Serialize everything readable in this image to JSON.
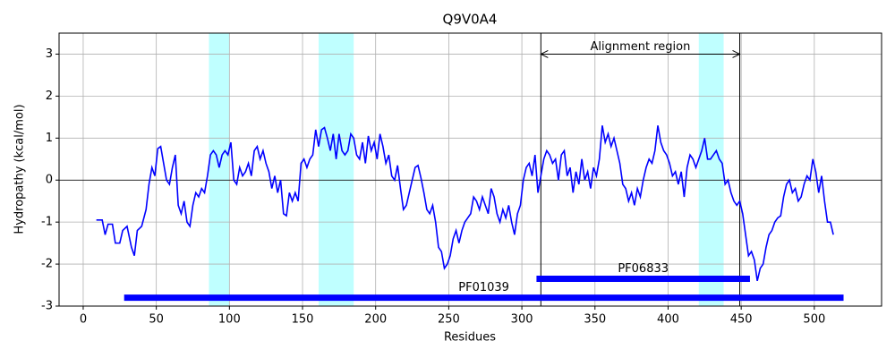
{
  "chart_data": {
    "type": "line",
    "title": "Q9V0A4",
    "x_label": "Residues",
    "y_label": "Hydropathy (kcal/mol)",
    "color": "#0000ff",
    "grid": true,
    "xlim": [
      -16.5,
      546
    ],
    "ylim": [
      -3,
      3.5
    ],
    "xticks": [
      0,
      50,
      100,
      150,
      200,
      250,
      300,
      350,
      400,
      450,
      500
    ],
    "yticks": [
      -3,
      -2,
      -1,
      0,
      1,
      2,
      3
    ],
    "x": [
      9,
      13,
      15,
      17,
      20,
      22,
      25,
      27,
      30,
      33,
      35,
      37,
      40,
      43,
      45,
      47,
      49,
      51,
      53,
      55,
      57,
      59,
      61,
      63,
      65,
      67,
      69,
      71,
      73,
      75,
      77,
      79,
      81,
      83,
      85,
      87,
      89,
      91,
      93,
      95,
      97,
      99,
      101,
      103,
      105,
      107,
      109,
      111,
      113,
      115,
      117,
      119,
      121,
      123,
      125,
      127,
      129,
      131,
      133,
      135,
      137,
      139,
      141,
      143,
      145,
      147,
      149,
      151,
      153,
      155,
      157,
      159,
      161,
      163,
      165,
      167,
      169,
      171,
      173,
      175,
      177,
      179,
      181,
      183,
      185,
      187,
      189,
      191,
      193,
      195,
      197,
      199,
      201,
      203,
      205,
      207,
      209,
      211,
      213,
      215,
      217,
      219,
      221,
      223,
      225,
      227,
      229,
      231,
      233,
      235,
      237,
      239,
      241,
      243,
      245,
      247,
      249,
      251,
      253,
      255,
      257,
      259,
      261,
      263,
      265,
      267,
      269,
      271,
      273,
      275,
      277,
      279,
      281,
      283,
      285,
      287,
      289,
      291,
      293,
      295,
      297,
      299,
      301,
      303,
      305,
      307,
      309,
      311,
      313,
      315,
      317,
      319,
      321,
      323,
      325,
      327,
      329,
      331,
      333,
      335,
      337,
      339,
      341,
      343,
      345,
      347,
      349,
      351,
      353,
      355,
      357,
      359,
      361,
      363,
      365,
      367,
      369,
      371,
      373,
      375,
      377,
      379,
      381,
      383,
      385,
      387,
      389,
      391,
      393,
      395,
      397,
      399,
      401,
      403,
      405,
      407,
      409,
      411,
      413,
      415,
      417,
      419,
      421,
      423,
      425,
      427,
      429,
      431,
      433,
      435,
      437,
      439,
      441,
      443,
      445,
      447,
      449,
      451,
      453,
      455,
      457,
      459,
      461,
      463,
      465,
      467,
      469,
      471,
      473,
      475,
      477,
      479,
      481,
      483,
      485,
      487,
      489,
      491,
      493,
      495,
      497,
      499,
      501,
      503,
      505,
      507,
      509,
      511,
      513
    ],
    "values": [
      -0.95,
      -0.95,
      -1.3,
      -1.05,
      -1.05,
      -1.5,
      -1.5,
      -1.2,
      -1.1,
      -1.6,
      -1.8,
      -1.2,
      -1.1,
      -0.7,
      -0.1,
      0.3,
      0.1,
      0.75,
      0.8,
      0.4,
      0.0,
      -0.1,
      0.3,
      0.6,
      -0.6,
      -0.8,
      -0.5,
      -1.0,
      -1.1,
      -0.6,
      -0.3,
      -0.4,
      -0.2,
      -0.3,
      0.1,
      0.6,
      0.7,
      0.6,
      0.3,
      0.6,
      0.7,
      0.6,
      0.9,
      0.0,
      -0.1,
      0.3,
      0.1,
      0.2,
      0.4,
      0.1,
      0.7,
      0.8,
      0.5,
      0.7,
      0.4,
      0.2,
      -0.2,
      0.1,
      -0.3,
      0.0,
      -0.8,
      -0.85,
      -0.3,
      -0.5,
      -0.3,
      -0.5,
      0.4,
      0.5,
      0.3,
      0.5,
      0.6,
      1.2,
      0.8,
      1.2,
      1.25,
      1.0,
      0.7,
      1.1,
      0.5,
      1.1,
      0.7,
      0.6,
      0.7,
      1.1,
      1.0,
      0.6,
      0.5,
      0.9,
      0.4,
      1.05,
      0.7,
      0.9,
      0.5,
      1.1,
      0.8,
      0.4,
      0.6,
      0.1,
      0.0,
      0.35,
      -0.2,
      -0.7,
      -0.6,
      -0.3,
      0.0,
      0.3,
      0.35,
      0.05,
      -0.3,
      -0.7,
      -0.8,
      -0.6,
      -1.0,
      -1.6,
      -1.7,
      -2.1,
      -2.0,
      -1.8,
      -1.4,
      -1.2,
      -1.5,
      -1.2,
      -1.0,
      -0.9,
      -0.8,
      -0.4,
      -0.5,
      -0.7,
      -0.4,
      -0.6,
      -0.8,
      -0.2,
      -0.4,
      -0.8,
      -1.0,
      -0.7,
      -0.9,
      -0.6,
      -1.0,
      -1.3,
      -0.8,
      -0.6,
      0.0,
      0.3,
      0.4,
      0.1,
      0.6,
      -0.3,
      0.1,
      0.5,
      0.7,
      0.6,
      0.4,
      0.5,
      0.0,
      0.6,
      0.7,
      0.1,
      0.3,
      -0.3,
      0.2,
      -0.1,
      0.5,
      0.0,
      0.2,
      -0.2,
      0.3,
      0.1,
      0.5,
      1.3,
      0.9,
      1.1,
      0.8,
      1.0,
      0.7,
      0.4,
      -0.1,
      -0.2,
      -0.5,
      -0.3,
      -0.6,
      -0.2,
      -0.4,
      0.0,
      0.3,
      0.5,
      0.4,
      0.7,
      1.3,
      0.9,
      0.7,
      0.6,
      0.4,
      0.1,
      0.2,
      -0.1,
      0.2,
      -0.4,
      0.3,
      0.6,
      0.5,
      0.3,
      0.5,
      0.7,
      1.0,
      0.5,
      0.5,
      0.6,
      0.7,
      0.5,
      0.4,
      -0.1,
      0.0,
      -0.3,
      -0.5,
      -0.6,
      -0.5,
      -0.8,
      -1.3,
      -1.8,
      -1.7,
      -1.9,
      -2.4,
      -2.1,
      -2.0,
      -1.6,
      -1.3,
      -1.2,
      -1.0,
      -0.9,
      -0.85,
      -0.4,
      -0.1,
      0.0,
      -0.3,
      -0.2,
      -0.5,
      -0.4,
      -0.1,
      0.1,
      0.0,
      0.5,
      0.2,
      -0.3,
      0.1,
      -0.5,
      -1.0,
      -1.0,
      -1.3
    ],
    "highlight_color": "#bfffff",
    "highlights": [
      {
        "start": 86,
        "end": 100
      },
      {
        "start": 161,
        "end": 185
      },
      {
        "start": 421,
        "end": 438
      }
    ],
    "vlines": [
      313,
      449
    ],
    "alignment": {
      "label": "Alignment region",
      "start": 313,
      "end": 449,
      "y": 3
    },
    "domain_color": "#0000ff",
    "domains": [
      {
        "label": "PF06833",
        "start": 310,
        "end": 456,
        "y": -2.35
      },
      {
        "label": "PF01039",
        "start": 28,
        "end": 520,
        "y": -2.8
      }
    ]
  }
}
